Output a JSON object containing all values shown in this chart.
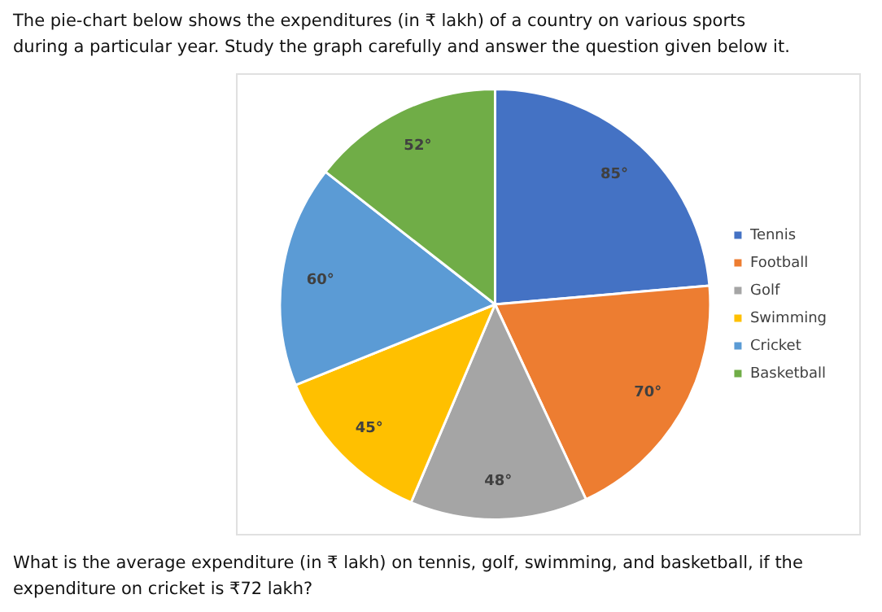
{
  "chart_data": {
    "type": "pie",
    "title": "The pie-chart below shows the expenditures (in ₹ lakh) of a country on various sports during a particular year. Study the graph carefully and answer the question given below it.",
    "categories": [
      "Tennis",
      "Football",
      "Golf",
      "Swimming",
      "Cricket",
      "Basketball"
    ],
    "values": [
      85,
      70,
      48,
      45,
      60,
      52
    ],
    "colors": [
      "#4472c4",
      "#ed7d31",
      "#a5a5a5",
      "#ffc000",
      "#5b9bd5",
      "#70ad47"
    ],
    "value_labels": [
      "85°",
      "70°",
      "48°",
      "45°",
      "60°",
      "52°"
    ],
    "legend": "right",
    "annotations": [
      "What is the average expenditure (in ₹ lakh) on tennis, golf, swimming, and basketball, if the expenditure on cricket is ₹72 lakh?"
    ]
  }
}
